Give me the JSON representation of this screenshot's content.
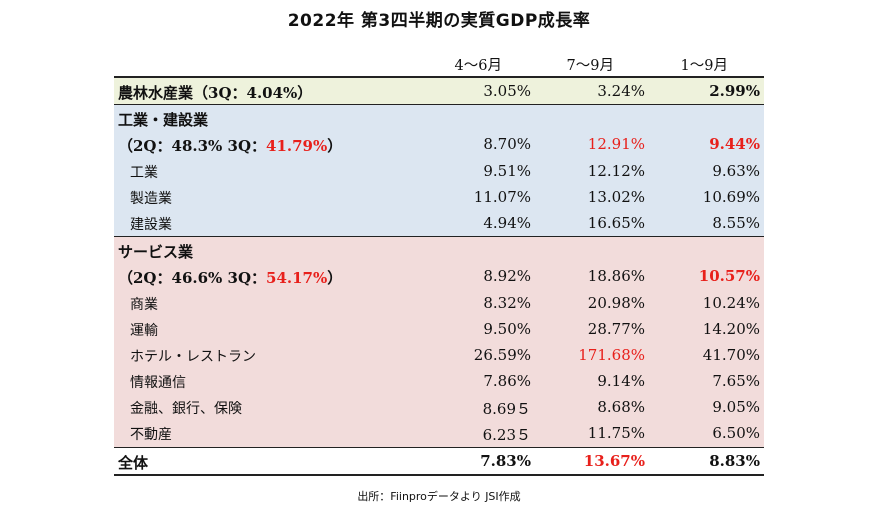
{
  "title": "2022年 第3四半期の実質GDP成長率",
  "columns": [
    "4～6月",
    "7～9月",
    "1～9月"
  ],
  "rows": [
    {
      "label": "農林水産業（3Q：4.04%）",
      "v1": "3.05%",
      "v2": "3.24%",
      "v3": "2.99%"
    },
    {
      "label": "工業・建設業",
      "v1": "",
      "v2": "",
      "v3": ""
    },
    {
      "label_pre": "（2Q：48.3% 3Q：",
      "label_red": "41.79%",
      "label_post": "）",
      "v1": "8.70%",
      "v2": "12.91%",
      "v3": "9.44%"
    },
    {
      "label": "工業",
      "v1": "9.51%",
      "v2": "12.12%",
      "v3": "9.63%"
    },
    {
      "label": "製造業",
      "v1": "11.07%",
      "v2": "13.02%",
      "v3": "10.69%"
    },
    {
      "label": "建設業",
      "v1": "4.94%",
      "v2": "16.65%",
      "v3": "8.55%"
    },
    {
      "label": "サービス業",
      "v1": "",
      "v2": "",
      "v3": ""
    },
    {
      "label_pre": "（2Q：46.6% 3Q：",
      "label_red": "54.17%",
      "label_post": "）",
      "v1": "8.92%",
      "v2": "18.86%",
      "v3": "10.57%"
    },
    {
      "label": "商業",
      "v1": "8.32%",
      "v2": "20.98%",
      "v3": "10.24%"
    },
    {
      "label": "運輸",
      "v1": "9.50%",
      "v2": "28.77%",
      "v3": "14.20%"
    },
    {
      "label": "ホテル・レストラン",
      "v1": "26.59%",
      "v2": "171.68%",
      "v3": "41.70%"
    },
    {
      "label": "情報通信",
      "v1": "7.86%",
      "v2": "9.14%",
      "v3": "7.65%"
    },
    {
      "label": "金融、銀行、保険",
      "v1": "8.69５",
      "v2": "8.68%",
      "v3": "9.05%"
    },
    {
      "label": "不動産",
      "v1": "6.23５",
      "v2": "11.75%",
      "v3": "6.50%"
    },
    {
      "label": "全体",
      "v1": "7.83%",
      "v2": "13.67%",
      "v3": "8.83%"
    }
  ],
  "colors": {
    "highlight_red": "#e8201b",
    "agri_bg": "#eef2dc",
    "industry_bg": "#dce6f1",
    "service_bg": "#f2dcdb"
  },
  "source": "出所：Fiinproデータより JSI作成"
}
